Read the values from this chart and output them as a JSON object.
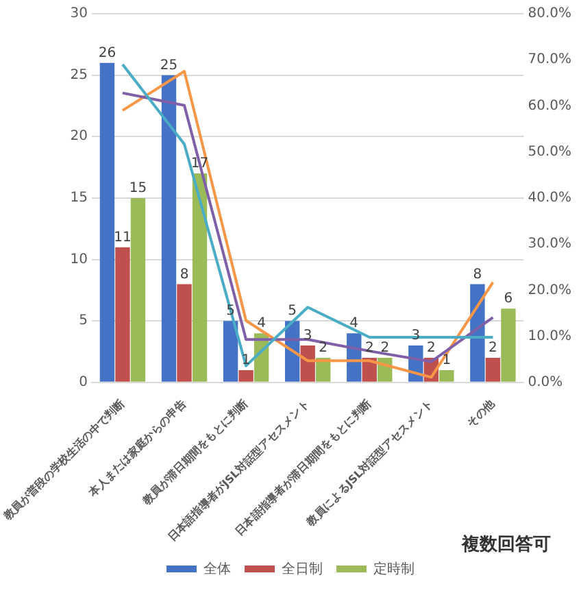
{
  "chart_data": {
    "type": "bar",
    "categories": [
      "教員が普段の学校生活の中で判断",
      "本人または家庭からの申告",
      "教員が滞日期間をもとに判断",
      "日本語指導者がJSL対話型アセスメント",
      "日本語指導者が滞日期間をもとに判断",
      "教員によるJSL対話型アセスメント",
      "その他"
    ],
    "series": [
      {
        "name": "全体",
        "color": "#4472c4",
        "values": [
          26,
          25,
          5,
          5,
          4,
          3,
          8
        ],
        "value_labels": [
          "26",
          "25",
          "5",
          "5",
          "4",
          "3",
          "8"
        ]
      },
      {
        "name": "全日制",
        "color": "#c0504d",
        "values": [
          11,
          8,
          1,
          3,
          2,
          2,
          2
        ],
        "value_labels": [
          "11",
          "8",
          "1",
          "3",
          "2",
          "2",
          "2"
        ]
      },
      {
        "name": "定時制",
        "color": "#9bbb59",
        "values": [
          15,
          17,
          4,
          2,
          2,
          1,
          6
        ],
        "value_labels": [
          "15",
          "17",
          "4",
          "2",
          "2",
          "1",
          "6"
        ]
      },
      {
        "type": "line",
        "axis": "y2",
        "color": "#4bacc6",
        "values": [
          69,
          51.7,
          3.6,
          16.3,
          9.8,
          9.8,
          9.8
        ]
      },
      {
        "type": "line",
        "axis": "y2",
        "color": "#7f60a8",
        "values": [
          62.8,
          60.1,
          9.3,
          9.3,
          6.8,
          4.5,
          14.1
        ]
      },
      {
        "type": "line",
        "axis": "y2",
        "color": "#f79646",
        "values": [
          59,
          67.5,
          13.4,
          4.7,
          4.7,
          1.1,
          21.7
        ]
      }
    ],
    "ylim": [
      0,
      30
    ],
    "yticks": [
      0,
      5,
      10,
      15,
      20,
      25,
      30
    ],
    "y2lim": [
      0,
      80
    ],
    "y2ticks": [
      {
        "value": 0,
        "label": "0.0%"
      },
      {
        "value": 10,
        "label": "10.0%"
      },
      {
        "value": 20,
        "label": "20.0%"
      },
      {
        "value": 30,
        "label": "30.0%"
      },
      {
        "value": 40,
        "label": "40.0%"
      },
      {
        "value": 50,
        "label": "50.0%"
      },
      {
        "value": 60,
        "label": "60.0%"
      },
      {
        "value": 70,
        "label": "70.0%"
      },
      {
        "value": 80,
        "label": "80.0%"
      }
    ],
    "grid": "y",
    "legend": "bottom",
    "annotations": [
      "複数回答可"
    ]
  }
}
